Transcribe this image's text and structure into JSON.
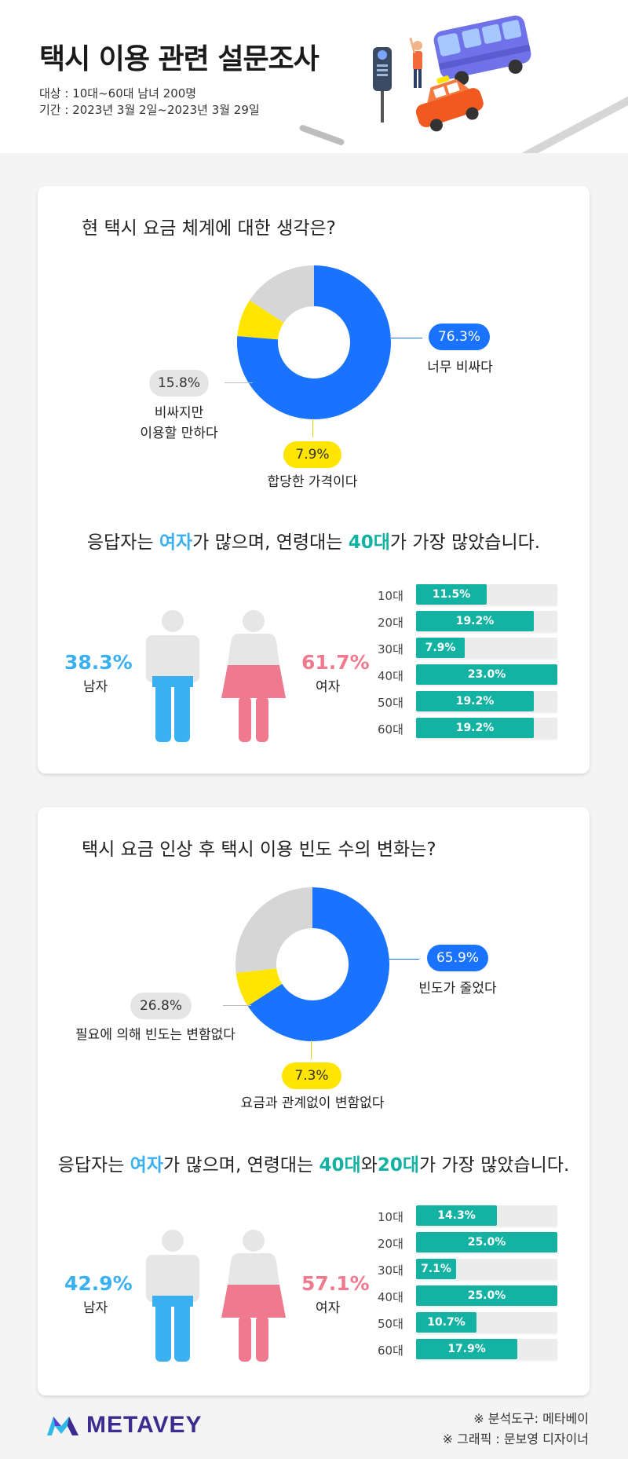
{
  "header": {
    "title": "택시 이용 관련 설문조사",
    "target": "대상 : 10대~60대 남녀 200명",
    "period": "기간 : 2023년 3월 2일~2023년 3월 29일"
  },
  "survey1": {
    "question": "현 택시 요금 체계에 대한 생각은?",
    "pie": [
      {
        "label": "너무 비싸다",
        "value": 76.3,
        "pct": "76.3%",
        "color": "#1a73ff"
      },
      {
        "label": "합당한 가격이다",
        "value": 7.9,
        "pct": "7.9%",
        "color": "#ffe500"
      },
      {
        "label_line1": "비싸지만",
        "label_line2": "이용할 만하다",
        "value": 15.8,
        "pct": "15.8%",
        "color": "#d6d6d6"
      }
    ],
    "resp_a": "응답자는 ",
    "resp_b": "여자",
    "resp_c": "가 많으며, 연령대는 ",
    "resp_d": "40대",
    "resp_e": "가 가장 많았습니다.",
    "male_pct": "38.3%",
    "male_label": "남자",
    "female_pct": "61.7%",
    "female_label": "여자",
    "ages": [
      {
        "label": "10대",
        "value": 11.5,
        "text": "11.5%"
      },
      {
        "label": "20대",
        "value": 19.2,
        "text": "19.2%"
      },
      {
        "label": "30대",
        "value": 7.9,
        "text": "7.9%"
      },
      {
        "label": "40대",
        "value": 23.0,
        "text": "23.0%"
      },
      {
        "label": "50대",
        "value": 19.2,
        "text": "19.2%"
      },
      {
        "label": "60대",
        "value": 19.2,
        "text": "19.2%"
      }
    ],
    "age_max": 23.0
  },
  "survey2": {
    "question": "택시 요금 인상 후 택시 이용 빈도 수의 변화는?",
    "pie": [
      {
        "label": "빈도가 줄었다",
        "value": 65.9,
        "pct": "65.9%",
        "color": "#1a73ff"
      },
      {
        "label": "요금과 관계없이 변함없다",
        "value": 7.3,
        "pct": "7.3%",
        "color": "#ffe500"
      },
      {
        "label": "필요에 의해 빈도는 변함없다",
        "value": 26.8,
        "pct": "26.8%",
        "color": "#d6d6d6"
      }
    ],
    "resp_a": "응답자는 ",
    "resp_b": "여자",
    "resp_c": "가 많으며, 연령대는 ",
    "resp_d": "40대",
    "resp_e": "와",
    "resp_f": "20대",
    "resp_g": "가 가장 많았습니다.",
    "male_pct": "42.9%",
    "male_label": "남자",
    "female_pct": "57.1%",
    "female_label": "여자",
    "ages": [
      {
        "label": "10대",
        "value": 14.3,
        "text": "14.3%"
      },
      {
        "label": "20대",
        "value": 25.0,
        "text": "25.0%"
      },
      {
        "label": "30대",
        "value": 7.1,
        "text": "7.1%"
      },
      {
        "label": "40대",
        "value": 25.0,
        "text": "25.0%"
      },
      {
        "label": "50대",
        "value": 10.7,
        "text": "10.7%"
      },
      {
        "label": "60대",
        "value": 17.9,
        "text": "17.9%"
      }
    ],
    "age_max": 25.0
  },
  "footer": {
    "brand": "METAVEY",
    "credit1": "※ 분석도구: 메타베이",
    "credit2": "※ 그래픽 : 문보영 디자이너"
  },
  "chart_data": [
    {
      "type": "pie",
      "title": "현 택시 요금 체계에 대한 생각은?",
      "categories": [
        "너무 비싸다",
        "합당한 가격이다",
        "비싸지만 이용할 만하다"
      ],
      "values": [
        76.3,
        7.9,
        15.8
      ]
    },
    {
      "type": "bar",
      "title": "",
      "categories": [
        "10대",
        "20대",
        "30대",
        "40대",
        "50대",
        "60대"
      ],
      "values": [
        11.5,
        19.2,
        7.9,
        23.0,
        19.2,
        19.2
      ]
    },
    {
      "type": "pie",
      "title": "택시 요금 인상 후 택시 이용 빈도 수의 변화는?",
      "categories": [
        "빈도가 줄었다",
        "요금과 관계없이 변함없다",
        "필요에 의해 빈도는 변함없다"
      ],
      "values": [
        65.9,
        7.3,
        26.8
      ]
    },
    {
      "type": "bar",
      "title": "",
      "categories": [
        "10대",
        "20대",
        "30대",
        "40대",
        "50대",
        "60대"
      ],
      "values": [
        14.3,
        25.0,
        7.1,
        25.0,
        10.7,
        17.9
      ]
    }
  ]
}
